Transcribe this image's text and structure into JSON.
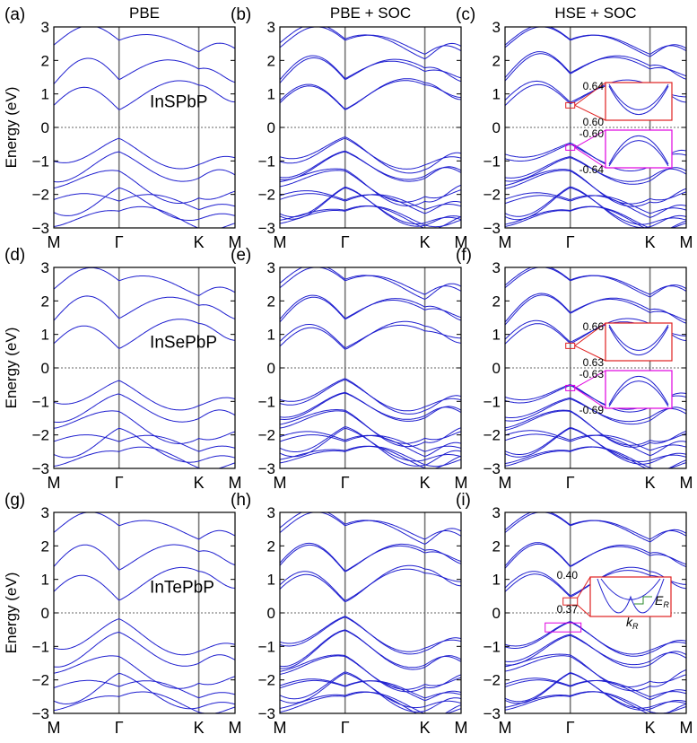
{
  "figure": {
    "ylabel": "Energy (eV)",
    "ylim": [
      -3,
      3
    ],
    "yticks": [
      "3",
      "2",
      "1",
      "0",
      "−1",
      "−2",
      "−3"
    ],
    "kpath": [
      "M",
      "Γ",
      "K",
      "M"
    ],
    "band_color": "#1f1fcf",
    "inset_vbm_color": "#e000e0",
    "inset_cbm_color": "#e02020",
    "kr_color": "#2a8a2a"
  },
  "chart_data": [
    {
      "id": "a",
      "panel_label": "(a)",
      "column_title": "PBE",
      "material": "InSPbP",
      "type": "line"
    },
    {
      "id": "b",
      "panel_label": "(b)",
      "column_title": "PBE + SOC",
      "material": "",
      "type": "line"
    },
    {
      "id": "c",
      "panel_label": "(c)",
      "column_title": "HSE + SOC",
      "material": "",
      "type": "line",
      "insets": {
        "cbm_top": "0.64",
        "cbm_bottom": "0.60",
        "vbm_top": "-0.60",
        "vbm_bottom": "-0.64"
      }
    },
    {
      "id": "d",
      "panel_label": "(d)",
      "column_title": "",
      "material": "InSePbP",
      "type": "line"
    },
    {
      "id": "e",
      "panel_label": "(e)",
      "column_title": "",
      "material": "",
      "type": "line"
    },
    {
      "id": "f",
      "panel_label": "(f)",
      "column_title": "",
      "material": "",
      "type": "line",
      "insets": {
        "cbm_top": "0.66",
        "cbm_bottom": "0.63",
        "vbm_top": "-0.63",
        "vbm_bottom": "-0.69"
      }
    },
    {
      "id": "g",
      "panel_label": "(g)",
      "column_title": "",
      "material": "InTePbP",
      "type": "line"
    },
    {
      "id": "h",
      "panel_label": "(h)",
      "column_title": "",
      "material": "",
      "type": "line"
    },
    {
      "id": "i",
      "panel_label": "(i)",
      "column_title": "",
      "material": "",
      "type": "line",
      "insets": {
        "top_label": "0.40",
        "bottom_label": "0.37",
        "er_label": "E",
        "er_sub": "R",
        "kr_label": "k",
        "kr_sub": "R"
      }
    }
  ]
}
